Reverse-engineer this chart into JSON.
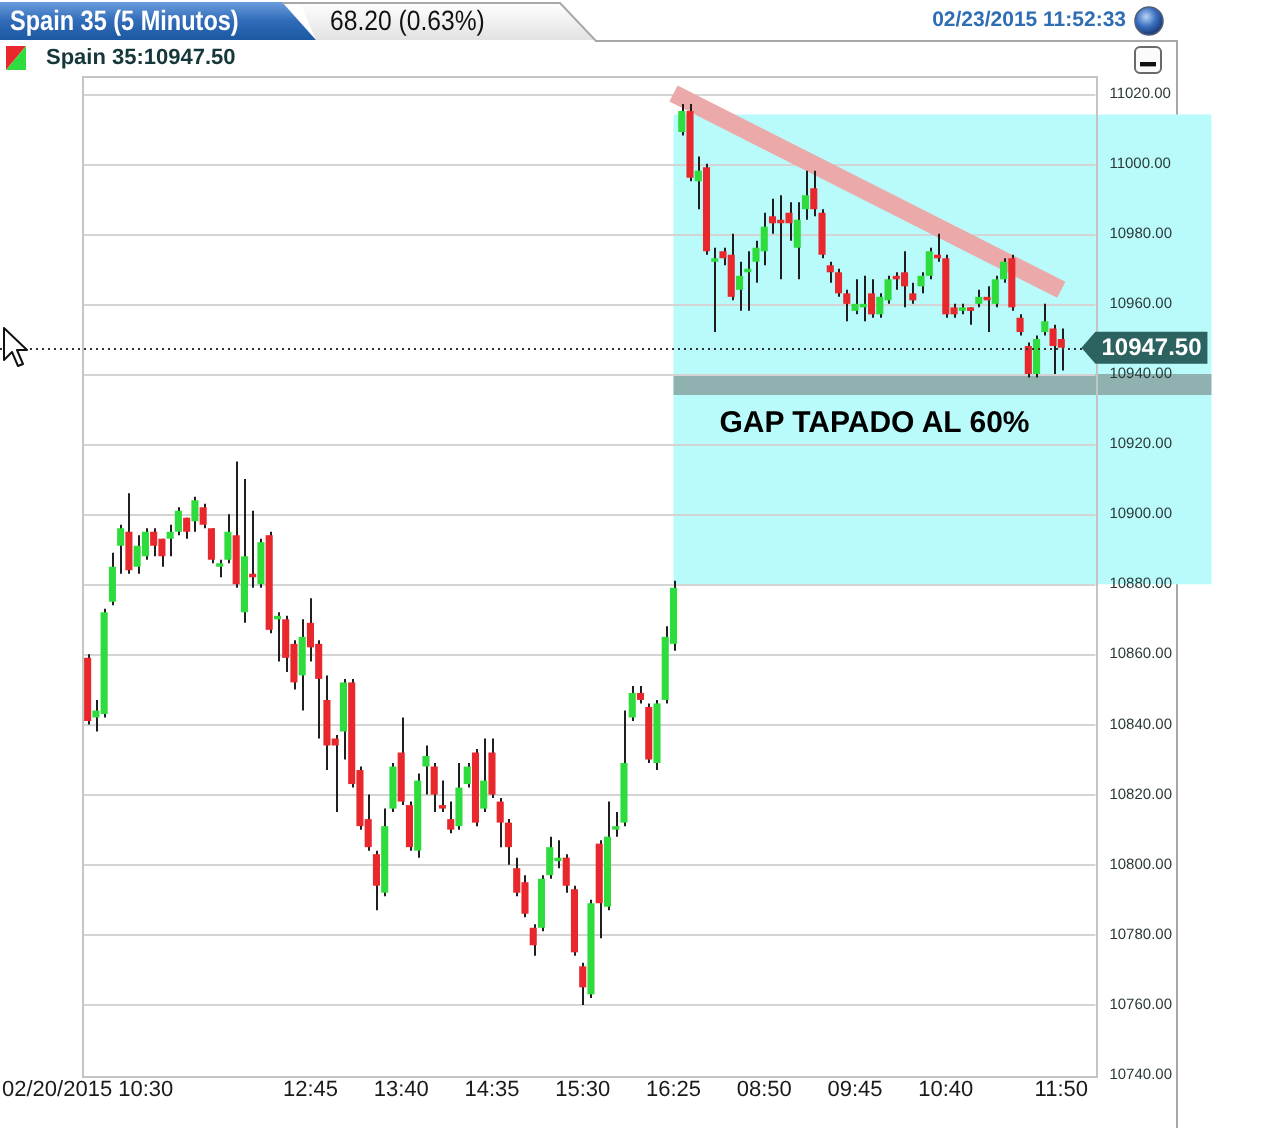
{
  "chart_data": {
    "type": "candlestick",
    "title": "Spain 35 (5 Minutos)",
    "subtitle": "68.20 (0.63%)",
    "annotations": [
      "02/23/2015 11:52:33"
    ],
    "categories": [
      "02/20/2015 10:30",
      null,
      null,
      null,
      null,
      null,
      null,
      null,
      null,
      null,
      null,
      null,
      null,
      null,
      null,
      null,
      null,
      null,
      null,
      null,
      null,
      null,
      null,
      null,
      null,
      null,
      null,
      "12:45",
      null,
      null,
      null,
      null,
      null,
      null,
      null,
      null,
      null,
      null,
      "13:40",
      null,
      null,
      null,
      null,
      null,
      null,
      null,
      null,
      null,
      null,
      "14:35",
      null,
      null,
      null,
      null,
      null,
      null,
      null,
      null,
      null,
      null,
      "15:30",
      null,
      null,
      null,
      null,
      null,
      null,
      null,
      null,
      null,
      null,
      "16:25",
      null,
      null,
      null,
      null,
      null,
      null,
      null,
      null,
      null,
      null,
      "08:50",
      null,
      null,
      null,
      null,
      null,
      null,
      null,
      null,
      null,
      null,
      "09:45",
      null,
      null,
      null,
      null,
      null,
      null,
      null,
      null,
      null,
      null,
      "10:40",
      null,
      null,
      null,
      null,
      null,
      null,
      null,
      null,
      null,
      null,
      null,
      null,
      null,
      "11:50"
    ],
    "ylim": [
      10740,
      11025
    ],
    "yticks": [
      {
        "value": 10740,
        "label": "10740.00"
      },
      {
        "value": 10760,
        "label": "10760.00"
      },
      {
        "value": 10780,
        "label": "10780.00"
      },
      {
        "value": 10800,
        "label": "10800.00"
      },
      {
        "value": 10820,
        "label": "10820.00"
      },
      {
        "value": 10840,
        "label": "10840.00"
      },
      {
        "value": 10860,
        "label": "10860.00"
      },
      {
        "value": 10880,
        "label": "10880.00"
      },
      {
        "value": 10900,
        "label": "10900.00"
      },
      {
        "value": 10920,
        "label": "10920.00"
      },
      {
        "value": 10940,
        "label": "10940.00"
      },
      {
        "value": 10960,
        "label": "10960.00"
      },
      {
        "value": 10980,
        "label": "10980.00"
      },
      {
        "value": 11000,
        "label": "11000.00"
      },
      {
        "value": 11020,
        "label": "11020.00"
      }
    ],
    "grid": "y",
    "legend": "top left",
    "series": [
      {
        "name": "Spain 35:10947.50",
        "ohlc": [
          [
            10859,
            10860,
            10840,
            10841
          ],
          [
            10842,
            10847,
            10838,
            10844
          ],
          [
            10843,
            10873,
            10842,
            10872
          ],
          [
            10875,
            10889,
            10874,
            10885
          ],
          [
            10891,
            10897,
            10883,
            10896
          ],
          [
            10895,
            10906,
            10883,
            10884
          ],
          [
            10885,
            10894,
            10883,
            10891
          ],
          [
            10888,
            10896,
            10887,
            10895
          ],
          [
            10895,
            10896,
            10888,
            10891
          ],
          [
            10893,
            10893,
            10885,
            10888
          ],
          [
            10893,
            10897,
            10888,
            10895
          ],
          [
            10895,
            10902,
            10894,
            10901
          ],
          [
            10899,
            10899,
            10893,
            10895
          ],
          [
            10898,
            10905,
            10895,
            10904
          ],
          [
            10902,
            10903,
            10896,
            10897
          ],
          [
            10896,
            10896,
            10886,
            10887
          ],
          [
            10885,
            10887,
            10882,
            10886
          ],
          [
            10887,
            10900,
            10886,
            10895
          ],
          [
            10894,
            10915,
            10879,
            10880
          ],
          [
            10872,
            10910,
            10869,
            10888
          ],
          [
            10883,
            10901,
            10879,
            10882
          ],
          [
            10880,
            10893,
            10879,
            10892
          ],
          [
            10894,
            10895,
            10866,
            10867
          ],
          [
            10870,
            10872,
            10858,
            10871
          ],
          [
            10870,
            10871,
            10855,
            10859
          ],
          [
            10863,
            10864,
            10850,
            10852
          ],
          [
            10854,
            10870,
            10844,
            10865
          ],
          [
            10869,
            10876,
            10858,
            10862
          ],
          [
            10863,
            10864,
            10836,
            10853
          ],
          [
            10847,
            10854,
            10827,
            10834
          ],
          [
            10836,
            10837,
            10815,
            10834
          ],
          [
            10838,
            10853,
            10830,
            10852
          ],
          [
            10852,
            10853,
            10822,
            10823
          ],
          [
            10827,
            10828,
            10810,
            10811
          ],
          [
            10813,
            10820,
            10804,
            10805
          ],
          [
            10803,
            10804,
            10787,
            10794
          ],
          [
            10792,
            10816,
            10791,
            10811
          ],
          [
            10816,
            10829,
            10815,
            10828
          ],
          [
            10832,
            10842,
            10817,
            10818
          ],
          [
            10817,
            10818,
            10804,
            10805
          ],
          [
            10804,
            10826,
            10802,
            10824
          ],
          [
            10828,
            10834,
            10820,
            10831
          ],
          [
            10828,
            10829,
            10815,
            10820
          ],
          [
            10817,
            10824,
            10815,
            10816
          ],
          [
            10813,
            10818,
            10809,
            10810
          ],
          [
            10811,
            10829,
            10810,
            10822
          ],
          [
            10823,
            10829,
            10822,
            10828
          ],
          [
            10832,
            10833,
            10811,
            10812
          ],
          [
            10816,
            10836,
            10815,
            10824
          ],
          [
            10832,
            10836,
            10819,
            10820
          ],
          [
            10818,
            10819,
            10805,
            10812
          ],
          [
            10812,
            10813,
            10800,
            10805
          ],
          [
            10799,
            10802,
            10791,
            10792
          ],
          [
            10795,
            10797,
            10785,
            10786
          ],
          [
            10782,
            10783,
            10774,
            10777
          ],
          [
            10782,
            10797,
            10781,
            10796
          ],
          [
            10797,
            10808,
            10796,
            10805
          ],
          [
            10801,
            10807,
            10799,
            10802
          ],
          [
            10802,
            10803,
            10792,
            10794
          ],
          [
            10793,
            10794,
            10774,
            10775
          ],
          [
            10771,
            10772,
            10760,
            10765
          ],
          [
            10763,
            10790,
            10762,
            10789
          ],
          [
            10806,
            10807,
            10779,
            10789
          ],
          [
            10788,
            10818,
            10787,
            10808
          ],
          [
            10810,
            10815,
            10808,
            10811
          ],
          [
            10812,
            10844,
            10811,
            10829
          ],
          [
            10842,
            10851,
            10841,
            10849
          ],
          [
            10849,
            10851,
            10846,
            10847
          ],
          [
            10845,
            10846,
            10829,
            10830
          ],
          [
            10829,
            10847,
            10827,
            10846
          ],
          [
            10847,
            10868,
            10846,
            10865
          ],
          [
            10863,
            10881,
            10861,
            10879
          ],
          [
            11009,
            11017,
            11008,
            11015
          ],
          [
            11015,
            11017,
            10995,
            10996
          ],
          [
            10995,
            11002,
            10987,
            10998
          ],
          [
            10999,
            11000,
            10974,
            10975
          ],
          [
            10972,
            10976,
            10952,
            10973
          ],
          [
            10975,
            10976,
            10971,
            10973
          ],
          [
            10974,
            10980,
            10961,
            10962
          ],
          [
            10964,
            10972,
            10958,
            10968
          ],
          [
            10969,
            10975,
            10958,
            10970
          ],
          [
            10972,
            10978,
            10966,
            10976
          ],
          [
            10975,
            10986,
            10971,
            10982
          ],
          [
            10985,
            10990,
            10980,
            10983
          ],
          [
            10984,
            10991,
            10967,
            10983
          ],
          [
            10986,
            10989,
            10978,
            10983
          ],
          [
            10976,
            10989,
            10967,
            10984
          ],
          [
            10987,
            10998,
            10984,
            10991
          ],
          [
            10993,
            10998,
            10985,
            10987
          ],
          [
            10986,
            10987,
            10973,
            10974
          ],
          [
            10971,
            10972,
            10966,
            10969
          ],
          [
            10969,
            10970,
            10962,
            10963
          ],
          [
            10963,
            10964,
            10955,
            10960
          ],
          [
            10958,
            10967,
            10957,
            10960
          ],
          [
            10959,
            10968,
            10955,
            10960
          ],
          [
            10963,
            10967,
            10956,
            10957
          ],
          [
            10957,
            10963,
            10956,
            10962
          ],
          [
            10961,
            10968,
            10960,
            10967
          ],
          [
            10968,
            10969,
            10964,
            10967
          ],
          [
            10969,
            10975,
            10959,
            10965
          ],
          [
            10963,
            10966,
            10960,
            10961
          ],
          [
            10965,
            10969,
            10963,
            10968
          ],
          [
            10968,
            10976,
            10967,
            10975
          ],
          [
            10974,
            10980,
            10972,
            10973
          ],
          [
            10973,
            10974,
            10956,
            10957
          ],
          [
            10959,
            10960,
            10956,
            10957
          ],
          [
            10958,
            10960,
            10957,
            10959
          ],
          [
            10959,
            10959,
            10954,
            10958
          ],
          [
            10960,
            10964,
            10959,
            10962
          ],
          [
            10962,
            10965,
            10952,
            10961
          ],
          [
            10960,
            10968,
            10959,
            10967
          ],
          [
            10967,
            10973,
            10966,
            10972
          ],
          [
            10973,
            10974,
            10958,
            10959
          ],
          [
            10956,
            10957,
            10951,
            10952
          ],
          [
            10948,
            10949,
            10939,
            10940
          ],
          [
            10940,
            10951,
            10939,
            10950
          ],
          [
            10952,
            10960,
            10951,
            10955
          ],
          [
            10953,
            10954,
            10940,
            10948
          ],
          [
            10950,
            10953,
            10941,
            10947.5
          ]
        ],
        "colors": [
          "#e8282c",
          "#2fdc3e",
          "#2fdc3e",
          "#2fdc3e",
          "#2fdc3e",
          "#e8282c",
          "#2fdc3e",
          "#2fdc3e",
          "#e8282c",
          "#e8282c",
          "#2fdc3e",
          "#2fdc3e",
          "#e8282c",
          "#2fdc3e",
          "#e8282c",
          "#e8282c",
          "#2fdc3e",
          "#2fdc3e",
          "#e8282c",
          "#2fdc3e",
          "#e8282c",
          "#2fdc3e",
          "#e8282c",
          "#2fdc3e",
          "#e8282c",
          "#e8282c",
          "#2fdc3e",
          "#e8282c",
          "#e8282c",
          "#e8282c",
          "#e8282c",
          "#2fdc3e",
          "#e8282c",
          "#e8282c",
          "#e8282c",
          "#e8282c",
          "#2fdc3e",
          "#2fdc3e",
          "#e8282c",
          "#e8282c",
          "#2fdc3e",
          "#2fdc3e",
          "#e8282c",
          "#e8282c",
          "#e8282c",
          "#2fdc3e",
          "#2fdc3e",
          "#e8282c",
          "#2fdc3e",
          "#e8282c",
          "#e8282c",
          "#e8282c",
          "#e8282c",
          "#e8282c",
          "#e8282c",
          "#2fdc3e",
          "#2fdc3e",
          "#2fdc3e",
          "#e8282c",
          "#e8282c",
          "#e8282c",
          "#2fdc3e",
          "#e8282c",
          "#2fdc3e",
          "#2fdc3e",
          "#2fdc3e",
          "#2fdc3e",
          "#e8282c",
          "#e8282c",
          "#2fdc3e",
          "#2fdc3e",
          "#2fdc3e",
          "#2fdc3e",
          "#e8282c",
          "#2fdc3e",
          "#e8282c",
          "#2fdc3e",
          "#e8282c",
          "#e8282c",
          "#2fdc3e",
          "#2fdc3e",
          "#2fdc3e",
          "#2fdc3e",
          "#e8282c",
          "#e8282c",
          "#e8282c",
          "#2fdc3e",
          "#2fdc3e",
          "#e8282c",
          "#e8282c",
          "#e8282c",
          "#e8282c",
          "#e8282c",
          "#2fdc3e",
          "#2fdc3e",
          "#e8282c",
          "#2fdc3e",
          "#2fdc3e",
          "#e8282c",
          "#e8282c",
          "#e8282c",
          "#2fdc3e",
          "#2fdc3e",
          "#e8282c",
          "#e8282c",
          "#e8282c",
          "#2fdc3e",
          "#e8282c",
          "#2fdc3e",
          "#e8282c",
          "#2fdc3e",
          "#2fdc3e",
          "#e8282c",
          "#e8282c",
          "#e8282c",
          "#2fdc3e",
          "#2fdc3e",
          "#e8282c",
          "#e8282c"
        ]
      },
      {
        "type": "line",
        "x": [
          "16:25",
          "11:50"
        ],
        "values": [
          11020,
          10964
        ],
        "color": "#eca9a9"
      }
    ],
    "bands": [
      {
        "axis": "y",
        "from": 10880,
        "to": 11014,
        "color": "#b9fbfb"
      },
      {
        "axis": "y",
        "from": 10934,
        "to": 10940,
        "label": "GAP TAPADO AL 60%",
        "color": "#8fb1af"
      }
    ],
    "ref_lines": [
      {
        "axis": "y",
        "value": 10947.5,
        "label": "10947.50",
        "color": "#333333",
        "line_style": "dotted"
      }
    ]
  }
}
